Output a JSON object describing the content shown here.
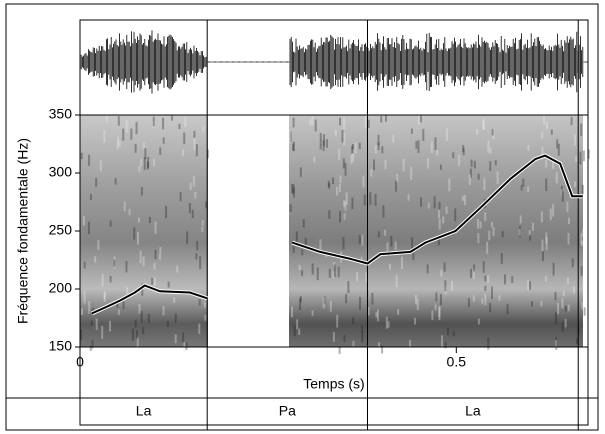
{
  "chart_data": {
    "type": "line",
    "y_label": "Fréquence fondamentale (Hz)",
    "x_label": "Temps (s)",
    "xlim": [
      0,
      0.675
    ],
    "xticks": [
      0,
      0.5
    ],
    "ylim": [
      150,
      350
    ],
    "yticks": [
      150,
      200,
      250,
      300,
      350
    ],
    "x": [
      0.016,
      0.033,
      0.053,
      0.073,
      0.086,
      0.106,
      0.146,
      0.169,
      0.2,
      0.282,
      0.319,
      0.359,
      0.382,
      0.399,
      0.439,
      0.459,
      0.499,
      0.532,
      0.572,
      0.605,
      0.618,
      0.638,
      0.654,
      0.668
    ],
    "series": [
      {
        "name": "F0",
        "color": "#000000",
        "values": [
          179,
          184,
          190,
          197,
          203,
          198,
          197,
          192,
          null,
          240,
          232,
          226,
          222,
          230,
          232,
          240,
          250,
          270,
          295,
          312,
          315,
          308,
          280,
          280
        ]
      }
    ],
    "intervals": [
      {
        "label": "La",
        "start": 0,
        "end": 0.169
      },
      {
        "label": "Pa",
        "start": 0.169,
        "end": 0.382
      },
      {
        "label": "La",
        "start": 0.382,
        "end": 0.662
      }
    ]
  }
}
